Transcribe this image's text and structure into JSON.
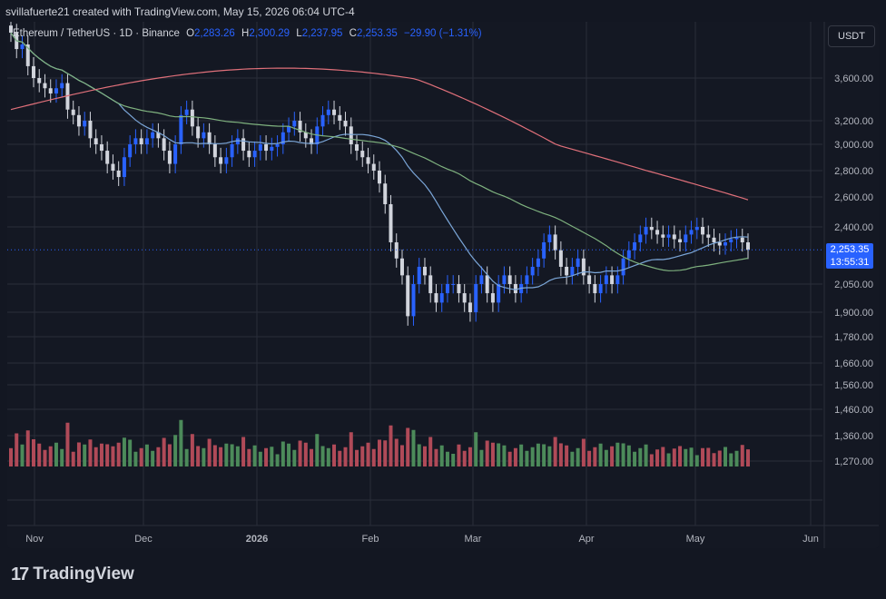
{
  "header": {
    "caption": "svillafuerte21 created with TradingView.com, May 15, 2026 06:04 UTC-4"
  },
  "legend": {
    "symbol": "Ethereum / TetherUS · 1D · Binance",
    "open_label": "O",
    "open": "2,283.26",
    "high_label": "H",
    "high": "2,300.29",
    "low_label": "L",
    "low": "2,237.95",
    "close_label": "C",
    "close": "2,253.35",
    "change": "−29.90 (−1.31%)"
  },
  "currency": "USDT",
  "last_price": {
    "price": "2,253.35",
    "countdown": "13:55:31"
  },
  "brand": {
    "name": "TradingView",
    "mark": "17"
  },
  "colors": {
    "up": "#2962ff",
    "down": "#d1d4dc",
    "ma_fast": "#7ba6d8",
    "ma_mid": "#7fb27f",
    "ma_slow": "#e0707a",
    "vol_up": "#4c8a5a",
    "vol_down": "#b04a58",
    "grid": "#2a2e39"
  },
  "chart_data": {
    "type": "candlestick",
    "title": "",
    "price_axis": {
      "ticks": [
        3600,
        3200,
        3000,
        2800,
        2600,
        2400,
        2050,
        1900,
        1780,
        1660,
        1560,
        1460,
        1360,
        1270
      ],
      "tick_labels": [
        "3,600.00",
        "3,200.00",
        "3,000.00",
        "2,800.00",
        "2,600.00",
        "2,400.00",
        "2,050.00",
        "1,900.00",
        "1,780.00",
        "1,660.00",
        "1,560.00",
        "1,460.00",
        "1,360.00",
        "1,270.00"
      ],
      "scale": "log"
    },
    "time_axis": {
      "labels": [
        "Nov",
        "Dec",
        "2026",
        "Feb",
        "Mar",
        "Apr",
        "May",
        "Jun"
      ]
    },
    "ohlc_closes_approx": [
      4080,
      3900,
      3950,
      3720,
      3600,
      3550,
      3500,
      3450,
      3500,
      3550,
      3300,
      3250,
      3150,
      3200,
      3050,
      3000,
      2950,
      2850,
      2800,
      2750,
      2900,
      3000,
      3050,
      3000,
      3050,
      3100,
      3050,
      2950,
      2850,
      3000,
      3250,
      3300,
      3150,
      3050,
      3100,
      3000,
      2900,
      2850,
      2900,
      3000,
      3050,
      2950,
      2900,
      2950,
      3000,
      2950,
      2980,
      3000,
      3100,
      3150,
      3200,
      3100,
      3050,
      3000,
      3150,
      3250,
      3300,
      3250,
      3200,
      3150,
      3000,
      2950,
      2900,
      2850,
      2800,
      2700,
      2550,
      2300,
      2200,
      2100,
      1880,
      2050,
      2150,
      2100,
      2000,
      1950,
      2000,
      2050,
      2050,
      2000,
      1950,
      1900,
      2050,
      2100,
      2000,
      1950,
      2050,
      2100,
      2050,
      2000,
      2050,
      2100,
      2150,
      2200,
      2300,
      2350,
      2250,
      2150,
      2100,
      2150,
      2200,
      2100,
      2050,
      2000,
      2050,
      2100,
      2050,
      2100,
      2200,
      2250,
      2300,
      2350,
      2400,
      2380,
      2350,
      2330,
      2350,
      2320,
      2300,
      2350,
      2380,
      2400,
      2350,
      2330,
      2300,
      2280,
      2300,
      2320,
      2330,
      2300,
      2253
    ]
  }
}
